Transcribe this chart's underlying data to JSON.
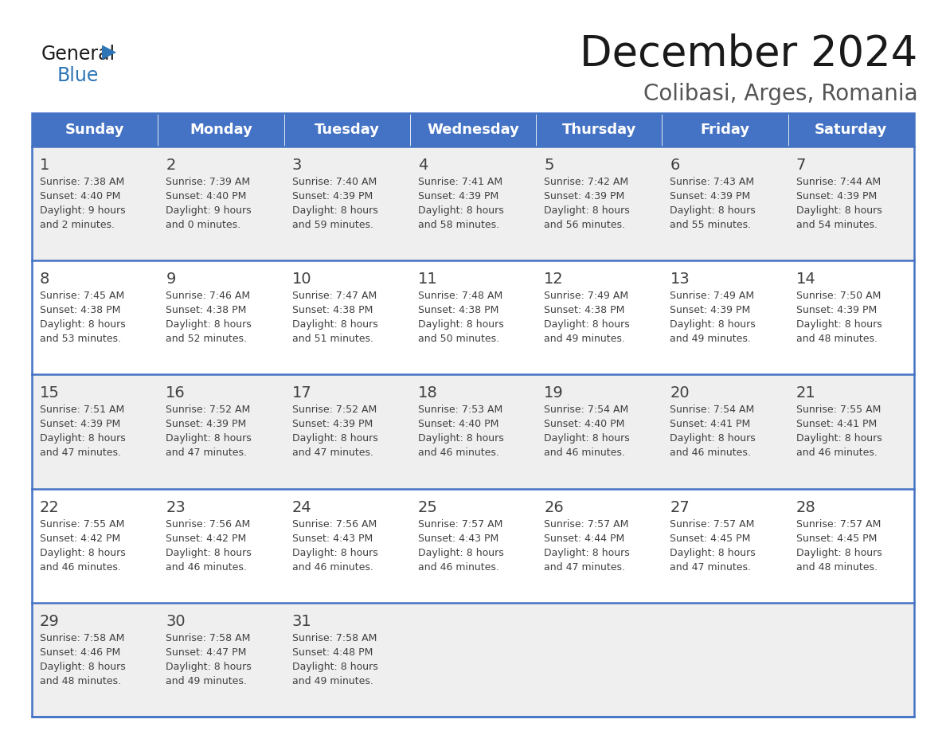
{
  "title": "December 2024",
  "subtitle": "Colibasi, Arges, Romania",
  "header_bg_color": "#4472C4",
  "header_text_color": "#FFFFFF",
  "row_bg_odd": "#EFEFEF",
  "row_bg_even": "#FFFFFF",
  "day_names": [
    "Sunday",
    "Monday",
    "Tuesday",
    "Wednesday",
    "Thursday",
    "Friday",
    "Saturday"
  ],
  "cell_border_color": "#4472C4",
  "cell_text_color": "#404040",
  "calendar_data": [
    [
      {
        "day": "1",
        "sunrise": "7:38 AM",
        "sunset": "4:40 PM",
        "daylight_line1": "Daylight: 9 hours",
        "daylight_line2": "and 2 minutes."
      },
      {
        "day": "2",
        "sunrise": "7:39 AM",
        "sunset": "4:40 PM",
        "daylight_line1": "Daylight: 9 hours",
        "daylight_line2": "and 0 minutes."
      },
      {
        "day": "3",
        "sunrise": "7:40 AM",
        "sunset": "4:39 PM",
        "daylight_line1": "Daylight: 8 hours",
        "daylight_line2": "and 59 minutes."
      },
      {
        "day": "4",
        "sunrise": "7:41 AM",
        "sunset": "4:39 PM",
        "daylight_line1": "Daylight: 8 hours",
        "daylight_line2": "and 58 minutes."
      },
      {
        "day": "5",
        "sunrise": "7:42 AM",
        "sunset": "4:39 PM",
        "daylight_line1": "Daylight: 8 hours",
        "daylight_line2": "and 56 minutes."
      },
      {
        "day": "6",
        "sunrise": "7:43 AM",
        "sunset": "4:39 PM",
        "daylight_line1": "Daylight: 8 hours",
        "daylight_line2": "and 55 minutes."
      },
      {
        "day": "7",
        "sunrise": "7:44 AM",
        "sunset": "4:39 PM",
        "daylight_line1": "Daylight: 8 hours",
        "daylight_line2": "and 54 minutes."
      }
    ],
    [
      {
        "day": "8",
        "sunrise": "7:45 AM",
        "sunset": "4:38 PM",
        "daylight_line1": "Daylight: 8 hours",
        "daylight_line2": "and 53 minutes."
      },
      {
        "day": "9",
        "sunrise": "7:46 AM",
        "sunset": "4:38 PM",
        "daylight_line1": "Daylight: 8 hours",
        "daylight_line2": "and 52 minutes."
      },
      {
        "day": "10",
        "sunrise": "7:47 AM",
        "sunset": "4:38 PM",
        "daylight_line1": "Daylight: 8 hours",
        "daylight_line2": "and 51 minutes."
      },
      {
        "day": "11",
        "sunrise": "7:48 AM",
        "sunset": "4:38 PM",
        "daylight_line1": "Daylight: 8 hours",
        "daylight_line2": "and 50 minutes."
      },
      {
        "day": "12",
        "sunrise": "7:49 AM",
        "sunset": "4:38 PM",
        "daylight_line1": "Daylight: 8 hours",
        "daylight_line2": "and 49 minutes."
      },
      {
        "day": "13",
        "sunrise": "7:49 AM",
        "sunset": "4:39 PM",
        "daylight_line1": "Daylight: 8 hours",
        "daylight_line2": "and 49 minutes."
      },
      {
        "day": "14",
        "sunrise": "7:50 AM",
        "sunset": "4:39 PM",
        "daylight_line1": "Daylight: 8 hours",
        "daylight_line2": "and 48 minutes."
      }
    ],
    [
      {
        "day": "15",
        "sunrise": "7:51 AM",
        "sunset": "4:39 PM",
        "daylight_line1": "Daylight: 8 hours",
        "daylight_line2": "and 47 minutes."
      },
      {
        "day": "16",
        "sunrise": "7:52 AM",
        "sunset": "4:39 PM",
        "daylight_line1": "Daylight: 8 hours",
        "daylight_line2": "and 47 minutes."
      },
      {
        "day": "17",
        "sunrise": "7:52 AM",
        "sunset": "4:39 PM",
        "daylight_line1": "Daylight: 8 hours",
        "daylight_line2": "and 47 minutes."
      },
      {
        "day": "18",
        "sunrise": "7:53 AM",
        "sunset": "4:40 PM",
        "daylight_line1": "Daylight: 8 hours",
        "daylight_line2": "and 46 minutes."
      },
      {
        "day": "19",
        "sunrise": "7:54 AM",
        "sunset": "4:40 PM",
        "daylight_line1": "Daylight: 8 hours",
        "daylight_line2": "and 46 minutes."
      },
      {
        "day": "20",
        "sunrise": "7:54 AM",
        "sunset": "4:41 PM",
        "daylight_line1": "Daylight: 8 hours",
        "daylight_line2": "and 46 minutes."
      },
      {
        "day": "21",
        "sunrise": "7:55 AM",
        "sunset": "4:41 PM",
        "daylight_line1": "Daylight: 8 hours",
        "daylight_line2": "and 46 minutes."
      }
    ],
    [
      {
        "day": "22",
        "sunrise": "7:55 AM",
        "sunset": "4:42 PM",
        "daylight_line1": "Daylight: 8 hours",
        "daylight_line2": "and 46 minutes."
      },
      {
        "day": "23",
        "sunrise": "7:56 AM",
        "sunset": "4:42 PM",
        "daylight_line1": "Daylight: 8 hours",
        "daylight_line2": "and 46 minutes."
      },
      {
        "day": "24",
        "sunrise": "7:56 AM",
        "sunset": "4:43 PM",
        "daylight_line1": "Daylight: 8 hours",
        "daylight_line2": "and 46 minutes."
      },
      {
        "day": "25",
        "sunrise": "7:57 AM",
        "sunset": "4:43 PM",
        "daylight_line1": "Daylight: 8 hours",
        "daylight_line2": "and 46 minutes."
      },
      {
        "day": "26",
        "sunrise": "7:57 AM",
        "sunset": "4:44 PM",
        "daylight_line1": "Daylight: 8 hours",
        "daylight_line2": "and 47 minutes."
      },
      {
        "day": "27",
        "sunrise": "7:57 AM",
        "sunset": "4:45 PM",
        "daylight_line1": "Daylight: 8 hours",
        "daylight_line2": "and 47 minutes."
      },
      {
        "day": "28",
        "sunrise": "7:57 AM",
        "sunset": "4:45 PM",
        "daylight_line1": "Daylight: 8 hours",
        "daylight_line2": "and 48 minutes."
      }
    ],
    [
      {
        "day": "29",
        "sunrise": "7:58 AM",
        "sunset": "4:46 PM",
        "daylight_line1": "Daylight: 8 hours",
        "daylight_line2": "and 48 minutes."
      },
      {
        "day": "30",
        "sunrise": "7:58 AM",
        "sunset": "4:47 PM",
        "daylight_line1": "Daylight: 8 hours",
        "daylight_line2": "and 49 minutes."
      },
      {
        "day": "31",
        "sunrise": "7:58 AM",
        "sunset": "4:48 PM",
        "daylight_line1": "Daylight: 8 hours",
        "daylight_line2": "and 49 minutes."
      },
      null,
      null,
      null,
      null
    ]
  ]
}
